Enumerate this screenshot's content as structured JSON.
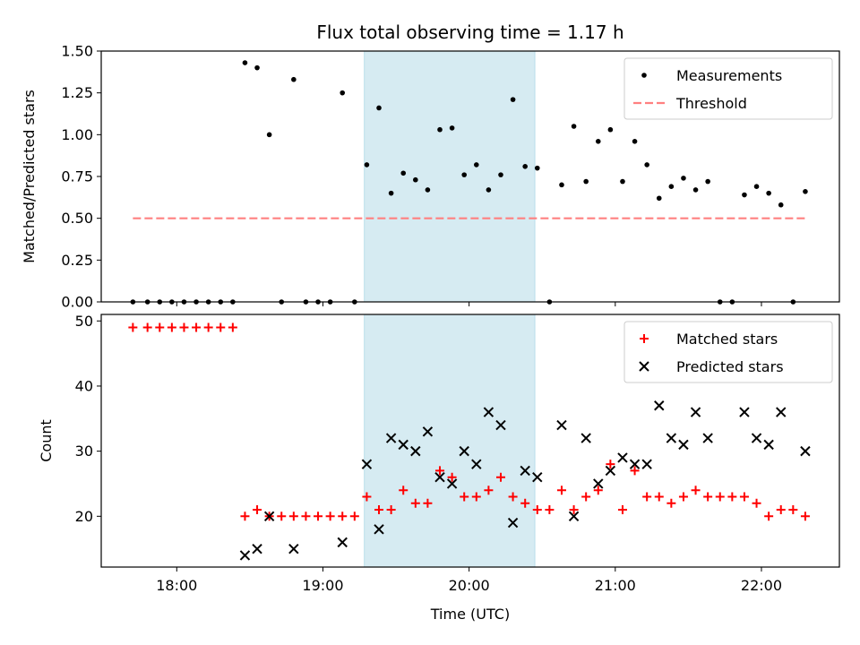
{
  "chart_data": [
    {
      "type": "scatter",
      "title": "Flux total observing time = 1.17 h",
      "xlabel": "",
      "ylabel": "Matched/Predicted stars",
      "xlim": [
        "17:29",
        "22:32"
      ],
      "ylim": [
        0,
        1.5
      ],
      "yticks": [
        "0.00",
        "0.25",
        "0.50",
        "0.75",
        "1.00",
        "1.25",
        "1.50"
      ],
      "xticks": [
        "18:00",
        "19:00",
        "20:00",
        "21:00",
        "22:00"
      ],
      "shaded_span": {
        "start": "19:17",
        "end": "20:27",
        "color": "#add8e6"
      },
      "legend": {
        "placement": "upper right"
      },
      "series": [
        {
          "name": "Measurements",
          "marker": "dot",
          "color": "#000000",
          "points": [
            [
              "17:42",
              0
            ],
            [
              "17:48",
              0
            ],
            [
              "17:53",
              0
            ],
            [
              "17:58",
              0
            ],
            [
              "18:03",
              0
            ],
            [
              "18:08",
              0
            ],
            [
              "18:13",
              0
            ],
            [
              "18:18",
              0
            ],
            [
              "18:23",
              0
            ],
            [
              "18:28",
              1.43
            ],
            [
              "18:33",
              1.4
            ],
            [
              "18:38",
              1.0
            ],
            [
              "18:43",
              0
            ],
            [
              "18:48",
              1.33
            ],
            [
              "18:53",
              0
            ],
            [
              "18:58",
              0
            ],
            [
              "19:03",
              0
            ],
            [
              "19:08",
              1.25
            ],
            [
              "19:13",
              0
            ],
            [
              "19:18",
              0.82
            ],
            [
              "19:23",
              1.16
            ],
            [
              "19:28",
              0.65
            ],
            [
              "19:33",
              0.77
            ],
            [
              "19:38",
              0.73
            ],
            [
              "19:43",
              0.67
            ],
            [
              "19:48",
              1.03
            ],
            [
              "19:53",
              1.04
            ],
            [
              "19:58",
              0.76
            ],
            [
              "20:03",
              0.82
            ],
            [
              "20:08",
              0.67
            ],
            [
              "20:13",
              0.76
            ],
            [
              "20:18",
              1.21
            ],
            [
              "20:23",
              0.81
            ],
            [
              "20:28",
              0.8
            ],
            [
              "20:33",
              0
            ],
            [
              "20:38",
              0.7
            ],
            [
              "20:43",
              1.05
            ],
            [
              "20:48",
              0.72
            ],
            [
              "20:53",
              0.96
            ],
            [
              "20:58",
              1.03
            ],
            [
              "21:03",
              0.72
            ],
            [
              "21:08",
              0.96
            ],
            [
              "21:13",
              0.82
            ],
            [
              "21:18",
              0.62
            ],
            [
              "21:23",
              0.69
            ],
            [
              "21:28",
              0.74
            ],
            [
              "21:33",
              0.67
            ],
            [
              "21:38",
              0.72
            ],
            [
              "21:43",
              0
            ],
            [
              "21:48",
              0
            ],
            [
              "21:53",
              0.64
            ],
            [
              "21:58",
              0.69
            ],
            [
              "22:03",
              0.65
            ],
            [
              "22:08",
              0.58
            ],
            [
              "22:13",
              0
            ],
            [
              "22:18",
              0.66
            ]
          ]
        },
        {
          "name": "Threshold",
          "style": "dashed-line",
          "color": "#ff8080",
          "points": [
            [
              "17:42",
              0.5
            ],
            [
              "22:18",
              0.5
            ]
          ]
        }
      ]
    },
    {
      "type": "scatter",
      "title": "",
      "xlabel": "Time (UTC)",
      "ylabel": "Count",
      "xlim": [
        "17:29",
        "22:32"
      ],
      "ylim": [
        12.2,
        51
      ],
      "yticks": [
        "20",
        "30",
        "40",
        "50"
      ],
      "xticks": [
        "18:00",
        "19:00",
        "20:00",
        "21:00",
        "22:00"
      ],
      "shaded_span": {
        "start": "19:17",
        "end": "20:27",
        "color": "#add8e6"
      },
      "legend": {
        "placement": "upper right"
      },
      "series": [
        {
          "name": "Matched stars",
          "marker": "plus",
          "color": "#ff0000",
          "points": [
            [
              "17:42",
              49
            ],
            [
              "17:48",
              49
            ],
            [
              "17:53",
              49
            ],
            [
              "17:58",
              49
            ],
            [
              "18:03",
              49
            ],
            [
              "18:08",
              49
            ],
            [
              "18:13",
              49
            ],
            [
              "18:18",
              49
            ],
            [
              "18:23",
              49
            ],
            [
              "18:28",
              20
            ],
            [
              "18:33",
              21
            ],
            [
              "18:38",
              20
            ],
            [
              "18:43",
              20
            ],
            [
              "18:48",
              20
            ],
            [
              "18:53",
              20
            ],
            [
              "18:58",
              20
            ],
            [
              "19:03",
              20
            ],
            [
              "19:08",
              20
            ],
            [
              "19:13",
              20
            ],
            [
              "19:18",
              23
            ],
            [
              "19:23",
              21
            ],
            [
              "19:28",
              21
            ],
            [
              "19:33",
              24
            ],
            [
              "19:38",
              22
            ],
            [
              "19:43",
              22
            ],
            [
              "19:48",
              27
            ],
            [
              "19:53",
              26
            ],
            [
              "19:58",
              23
            ],
            [
              "20:03",
              23
            ],
            [
              "20:08",
              24
            ],
            [
              "20:13",
              26
            ],
            [
              "20:18",
              23
            ],
            [
              "20:23",
              22
            ],
            [
              "20:28",
              21
            ],
            [
              "20:33",
              21
            ],
            [
              "20:38",
              24
            ],
            [
              "20:43",
              21
            ],
            [
              "20:48",
              23
            ],
            [
              "20:53",
              24
            ],
            [
              "20:58",
              28
            ],
            [
              "21:03",
              21
            ],
            [
              "21:08",
              27
            ],
            [
              "21:13",
              23
            ],
            [
              "21:18",
              23
            ],
            [
              "21:23",
              22
            ],
            [
              "21:28",
              23
            ],
            [
              "21:33",
              24
            ],
            [
              "21:38",
              23
            ],
            [
              "21:43",
              23
            ],
            [
              "21:48",
              23
            ],
            [
              "21:53",
              23
            ],
            [
              "21:58",
              22
            ],
            [
              "22:03",
              20
            ],
            [
              "22:08",
              21
            ],
            [
              "22:13",
              21
            ],
            [
              "22:18",
              20
            ]
          ]
        },
        {
          "name": "Predicted stars",
          "marker": "x",
          "color": "#000000",
          "points": [
            [
              "18:28",
              14
            ],
            [
              "18:33",
              15
            ],
            [
              "18:38",
              20
            ],
            [
              "18:48",
              15
            ],
            [
              "19:08",
              16
            ],
            [
              "19:18",
              28
            ],
            [
              "19:23",
              18
            ],
            [
              "19:28",
              32
            ],
            [
              "19:33",
              31
            ],
            [
              "19:38",
              30
            ],
            [
              "19:43",
              33
            ],
            [
              "19:48",
              26
            ],
            [
              "19:53",
              25
            ],
            [
              "19:58",
              30
            ],
            [
              "20:03",
              28
            ],
            [
              "20:08",
              36
            ],
            [
              "20:13",
              34
            ],
            [
              "20:18",
              19
            ],
            [
              "20:23",
              27
            ],
            [
              "20:28",
              26
            ],
            [
              "20:38",
              34
            ],
            [
              "20:43",
              20
            ],
            [
              "20:48",
              32
            ],
            [
              "20:53",
              25
            ],
            [
              "20:58",
              27
            ],
            [
              "21:03",
              29
            ],
            [
              "21:08",
              28
            ],
            [
              "21:13",
              28
            ],
            [
              "21:18",
              37
            ],
            [
              "21:23",
              32
            ],
            [
              "21:28",
              31
            ],
            [
              "21:33",
              36
            ],
            [
              "21:38",
              32
            ],
            [
              "21:53",
              36
            ],
            [
              "21:58",
              32
            ],
            [
              "22:03",
              31
            ],
            [
              "22:08",
              36
            ],
            [
              "22:18",
              30
            ]
          ]
        }
      ]
    }
  ]
}
